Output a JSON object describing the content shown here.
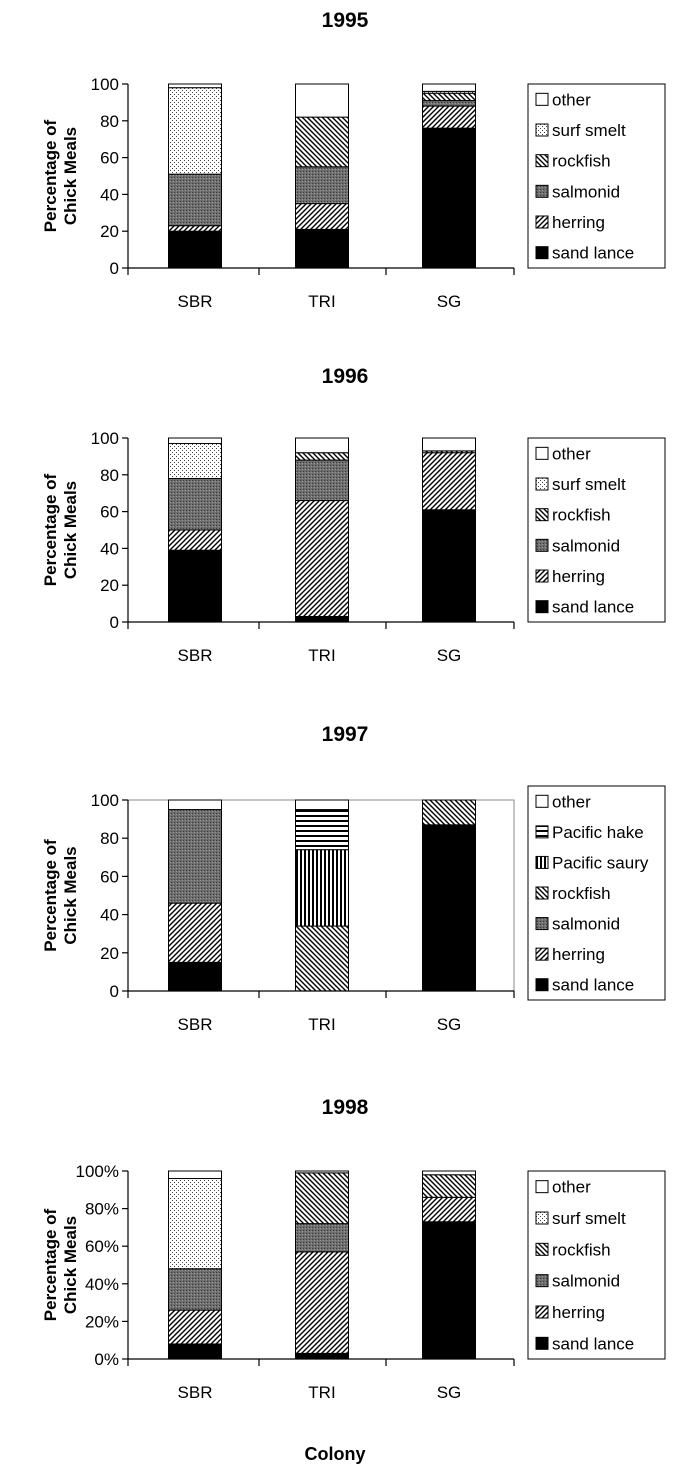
{
  "x_axis_title": "Colony",
  "chart_data": [
    {
      "type": "bar",
      "title": "1995",
      "ylabel": "Percentage of Chick Meals",
      "ylim": [
        0,
        100
      ],
      "yticks": [
        "0",
        "20",
        "40",
        "60",
        "80",
        "100"
      ],
      "categories": [
        "SBR",
        "TRI",
        "SG"
      ],
      "plot_border": false,
      "series": [
        {
          "name": "sand lance",
          "values": [
            20,
            21,
            76
          ]
        },
        {
          "name": "herring",
          "values": [
            3,
            14,
            12
          ]
        },
        {
          "name": "salmonid",
          "values": [
            28,
            20,
            3
          ]
        },
        {
          "name": "rockfish",
          "values": [
            0,
            27,
            4
          ]
        },
        {
          "name": "surf smelt",
          "values": [
            47,
            0,
            1
          ]
        },
        {
          "name": "other",
          "values": [
            2,
            18,
            4
          ]
        }
      ]
    },
    {
      "type": "bar",
      "title": "1996",
      "ylabel": "Percentage of Chick Meals",
      "ylim": [
        0,
        100
      ],
      "yticks": [
        "0",
        "20",
        "40",
        "60",
        "80",
        "100"
      ],
      "categories": [
        "SBR",
        "TRI",
        "SG"
      ],
      "plot_border": false,
      "series": [
        {
          "name": "sand lance",
          "values": [
            39,
            3,
            61
          ]
        },
        {
          "name": "herring",
          "values": [
            11,
            63,
            31
          ]
        },
        {
          "name": "salmonid",
          "values": [
            28,
            22,
            0
          ]
        },
        {
          "name": "rockfish",
          "values": [
            0,
            4,
            1
          ]
        },
        {
          "name": "surf smelt",
          "values": [
            19,
            0,
            0
          ]
        },
        {
          "name": "other",
          "values": [
            3,
            8,
            7
          ]
        }
      ]
    },
    {
      "type": "bar",
      "title": "1997",
      "ylabel": "Percentage of Chick Meals",
      "ylim": [
        0,
        100
      ],
      "yticks": [
        "0",
        "20",
        "40",
        "60",
        "80",
        "100"
      ],
      "categories": [
        "SBR",
        "TRI",
        "SG"
      ],
      "plot_border": true,
      "series": [
        {
          "name": "sand lance",
          "values": [
            15,
            0,
            87
          ]
        },
        {
          "name": "herring",
          "values": [
            31,
            0,
            0
          ]
        },
        {
          "name": "salmonid",
          "values": [
            49,
            0,
            0
          ]
        },
        {
          "name": "rockfish",
          "values": [
            0,
            34,
            13
          ]
        },
        {
          "name": "Pacific saury",
          "values": [
            0,
            40,
            0
          ]
        },
        {
          "name": "Pacific hake",
          "values": [
            0,
            21,
            0
          ]
        },
        {
          "name": "other",
          "values": [
            5,
            5,
            0
          ]
        }
      ]
    },
    {
      "type": "bar",
      "title": "1998",
      "ylabel": "Percentage of Chick Meals",
      "ylim": [
        0,
        100
      ],
      "yticks": [
        "0%",
        "20%",
        "40%",
        "60%",
        "80%",
        "100%"
      ],
      "categories": [
        "SBR",
        "TRI",
        "SG"
      ],
      "plot_border": false,
      "series": [
        {
          "name": "sand lance",
          "values": [
            8,
            3,
            73
          ]
        },
        {
          "name": "herring",
          "values": [
            18,
            54,
            13
          ]
        },
        {
          "name": "salmonid",
          "values": [
            22,
            15,
            0
          ]
        },
        {
          "name": "rockfish",
          "values": [
            0,
            27,
            12
          ]
        },
        {
          "name": "surf smelt",
          "values": [
            48,
            0,
            0
          ]
        },
        {
          "name": "other",
          "values": [
            4,
            1,
            2
          ]
        }
      ]
    }
  ],
  "series_fills": {
    "sand lance": "solid-black",
    "herring": "diagonal-hatch",
    "salmonid": "dense-gray",
    "rockfish": "backslash-hatch",
    "surf smelt": "light-dots",
    "Pacific saury": "vertical-lines",
    "Pacific hake": "horizontal-lines",
    "other": "white"
  },
  "colors": {
    "ink": "#000000",
    "background": "#ffffff",
    "dense_gray": "#6e6e6e"
  }
}
